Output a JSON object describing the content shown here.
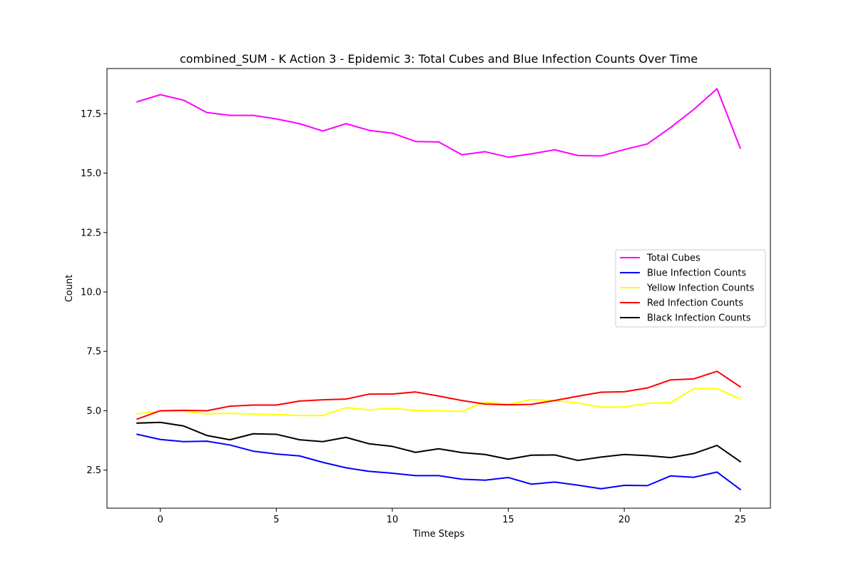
{
  "chart_data": {
    "type": "line",
    "title": "combined_SUM - K Action 3 - Epidemic 3: Total Cubes and Blue Infection Counts Over Time",
    "xlabel": "Time Steps",
    "ylabel": "Count",
    "xlim": [
      -2.3,
      26.3
    ],
    "ylim": [
      0.9,
      19.4
    ],
    "xticks": [
      0,
      5,
      10,
      15,
      20,
      25
    ],
    "xtick_labels": [
      "0",
      "5",
      "10",
      "15",
      "20",
      "25"
    ],
    "yticks": [
      2.5,
      5.0,
      7.5,
      10.0,
      12.5,
      15.0,
      17.5
    ],
    "ytick_labels": [
      "2.5",
      "5.0",
      "7.5",
      "10.0",
      "12.5",
      "15.0",
      "17.5"
    ],
    "grid": false,
    "legend_position": "center-right",
    "x": [
      -1,
      0,
      1,
      2,
      3,
      4,
      5,
      6,
      7,
      8,
      9,
      10,
      11,
      12,
      13,
      14,
      15,
      16,
      17,
      18,
      19,
      20,
      21,
      22,
      23,
      24,
      25
    ],
    "series": [
      {
        "name": "Total Cubes",
        "color": "#ff00ff",
        "values": [
          18.0,
          18.3,
          18.07,
          17.55,
          17.43,
          17.43,
          17.28,
          17.08,
          16.77,
          17.08,
          16.8,
          16.68,
          16.33,
          16.31,
          15.77,
          15.9,
          15.67,
          15.81,
          15.98,
          15.74,
          15.72,
          15.99,
          16.23,
          16.92,
          17.68,
          18.55,
          16.05
        ]
      },
      {
        "name": "Blue Infection Counts",
        "color": "#0000ff",
        "values": [
          4.01,
          3.79,
          3.7,
          3.72,
          3.56,
          3.3,
          3.18,
          3.1,
          2.83,
          2.6,
          2.45,
          2.37,
          2.27,
          2.27,
          2.12,
          2.08,
          2.19,
          1.91,
          2.0,
          1.87,
          1.72,
          1.86,
          1.85,
          2.26,
          2.2,
          2.42,
          1.69
        ]
      },
      {
        "name": "Yellow Infection Counts",
        "color": "#ffff00",
        "values": [
          4.87,
          4.98,
          4.98,
          4.87,
          4.89,
          4.86,
          4.84,
          4.8,
          4.8,
          5.13,
          5.04,
          5.1,
          5.01,
          5.0,
          4.97,
          5.36,
          5.27,
          5.47,
          5.42,
          5.33,
          5.15,
          5.16,
          5.31,
          5.34,
          5.93,
          5.93,
          5.5
        ]
      },
      {
        "name": "Red Infection Counts",
        "color": "#ff0000",
        "values": [
          4.65,
          5.0,
          5.02,
          5.0,
          5.19,
          5.24,
          5.24,
          5.41,
          5.46,
          5.49,
          5.7,
          5.7,
          5.79,
          5.62,
          5.43,
          5.28,
          5.25,
          5.27,
          5.43,
          5.61,
          5.78,
          5.8,
          5.96,
          6.3,
          6.34,
          6.66,
          6.01
        ]
      },
      {
        "name": "Black Infection Counts",
        "color": "#000000",
        "values": [
          4.48,
          4.51,
          4.36,
          3.96,
          3.78,
          4.03,
          4.01,
          3.78,
          3.7,
          3.88,
          3.61,
          3.5,
          3.25,
          3.4,
          3.24,
          3.16,
          2.96,
          3.13,
          3.14,
          2.91,
          3.05,
          3.16,
          3.11,
          3.03,
          3.2,
          3.54,
          2.86
        ]
      }
    ]
  }
}
